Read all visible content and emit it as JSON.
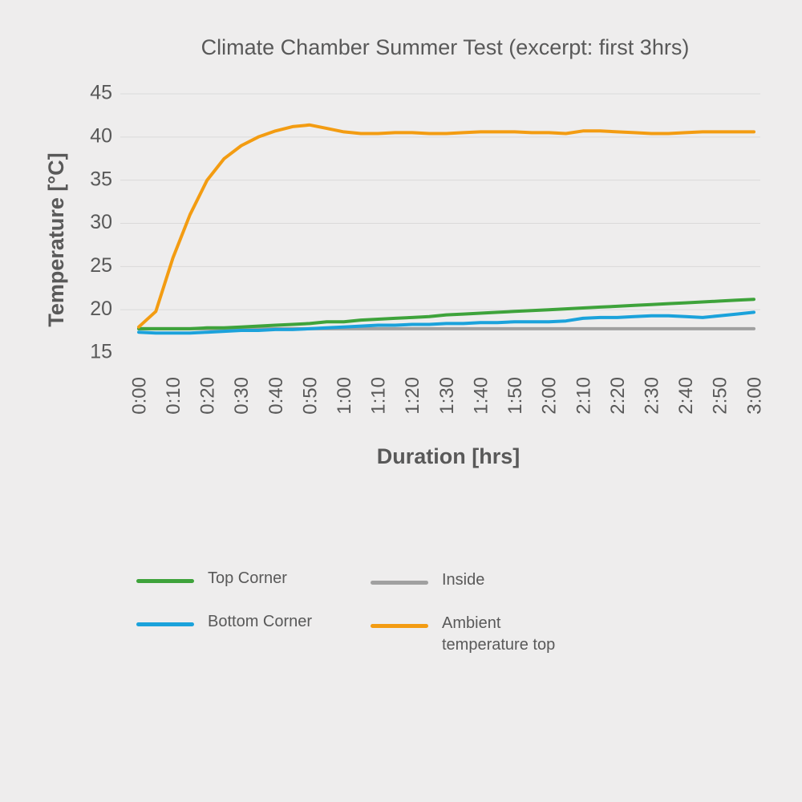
{
  "chart_data": {
    "type": "line",
    "title": "Climate Chamber Summer Test (excerpt: first 3hrs)",
    "xlabel": "Duration [hrs]",
    "ylabel": "Temperature [°C]",
    "ylim": [
      15,
      45
    ],
    "yticks": [
      "15",
      "20",
      "25",
      "30",
      "35",
      "40",
      "45"
    ],
    "grid": "horizontal",
    "legend_position": "bottom",
    "x": [
      "0:00",
      "0:05",
      "0:10",
      "0:15",
      "0:20",
      "0:25",
      "0:30",
      "0:35",
      "0:40",
      "0:45",
      "0:50",
      "0:55",
      "1:00",
      "1:05",
      "1:10",
      "1:15",
      "1:20",
      "1:25",
      "1:30",
      "1:35",
      "1:40",
      "1:45",
      "1:50",
      "1:55",
      "2:00",
      "2:05",
      "2:10",
      "2:15",
      "2:20",
      "2:25",
      "2:30",
      "2:35",
      "2:40",
      "2:45",
      "2:50",
      "2:55",
      "3:00"
    ],
    "xticks": [
      "0:00",
      "0:10",
      "0:20",
      "0:30",
      "0:40",
      "0:50",
      "1:00",
      "1:10",
      "1:20",
      "1:30",
      "1:40",
      "1:50",
      "2:00",
      "2:10",
      "2:20",
      "2:30",
      "2:40",
      "2:50",
      "3:00"
    ],
    "series": [
      {
        "name": "Top Corner",
        "color": "#3EA33B",
        "values": [
          17.8,
          17.8,
          17.8,
          17.8,
          17.9,
          17.9,
          18.0,
          18.1,
          18.2,
          18.3,
          18.4,
          18.6,
          18.6,
          18.8,
          18.9,
          19.0,
          19.1,
          19.2,
          19.4,
          19.5,
          19.6,
          19.7,
          19.8,
          19.9,
          20.0,
          20.1,
          20.2,
          20.3,
          20.4,
          20.5,
          20.6,
          20.7,
          20.8,
          20.9,
          21.0,
          21.1,
          21.2
        ]
      },
      {
        "name": "Bottom Corner",
        "color": "#1BA2DB",
        "values": [
          17.4,
          17.3,
          17.3,
          17.3,
          17.4,
          17.5,
          17.6,
          17.6,
          17.7,
          17.7,
          17.8,
          17.9,
          18.0,
          18.1,
          18.2,
          18.2,
          18.3,
          18.3,
          18.4,
          18.4,
          18.5,
          18.5,
          18.6,
          18.6,
          18.6,
          18.7,
          19.0,
          19.1,
          19.1,
          19.2,
          19.3,
          19.3,
          19.2,
          19.1,
          19.3,
          19.5,
          19.7
        ]
      },
      {
        "name": "Inside",
        "color": "#A0A0A0",
        "values": [
          17.8,
          17.8,
          17.8,
          17.8,
          17.8,
          17.8,
          17.8,
          17.8,
          17.8,
          17.8,
          17.8,
          17.8,
          17.8,
          17.8,
          17.8,
          17.8,
          17.8,
          17.8,
          17.8,
          17.8,
          17.8,
          17.8,
          17.8,
          17.8,
          17.8,
          17.8,
          17.8,
          17.8,
          17.8,
          17.8,
          17.8,
          17.8,
          17.8,
          17.8,
          17.8,
          17.8,
          17.8
        ]
      },
      {
        "name": "Ambient temperature top",
        "color": "#F39C12",
        "values": [
          18.0,
          19.8,
          26.0,
          31.0,
          35.0,
          37.5,
          39.0,
          40.0,
          40.7,
          41.2,
          41.4,
          41.0,
          40.6,
          40.4,
          40.4,
          40.5,
          40.5,
          40.4,
          40.4,
          40.5,
          40.6,
          40.6,
          40.6,
          40.5,
          40.5,
          40.4,
          40.7,
          40.7,
          40.6,
          40.5,
          40.4,
          40.4,
          40.5,
          40.6,
          40.6,
          40.6,
          40.6
        ]
      }
    ]
  }
}
